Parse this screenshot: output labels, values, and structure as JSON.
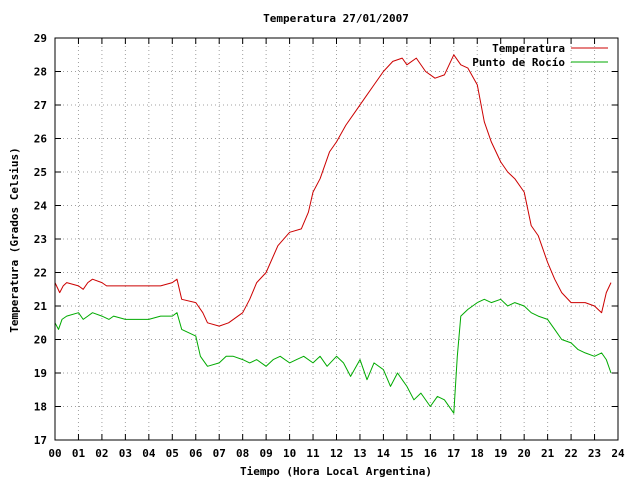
{
  "chart_data": {
    "type": "line",
    "title": "Temperatura 27/01/2007",
    "xlabel": "Tiempo (Hora Local Argentina)",
    "ylabel": "Temperatura (Grados Celsius)",
    "xlim": [
      0,
      24
    ],
    "ylim": [
      17,
      29
    ],
    "xticks": [
      "00",
      "01",
      "02",
      "03",
      "04",
      "05",
      "06",
      "07",
      "08",
      "09",
      "10",
      "11",
      "12",
      "13",
      "14",
      "15",
      "16",
      "17",
      "18",
      "19",
      "20",
      "21",
      "22",
      "23",
      "24"
    ],
    "yticks": [
      "17",
      "18",
      "19",
      "20",
      "21",
      "22",
      "23",
      "24",
      "25",
      "26",
      "27",
      "28",
      "29"
    ],
    "grid": true,
    "legend_position": "top-right",
    "series": [
      {
        "name": "Temperatura",
        "color": "#cc0000",
        "x": [
          0.0,
          0.2,
          0.35,
          0.5,
          1.0,
          1.2,
          1.4,
          1.6,
          2.0,
          2.2,
          2.5,
          3.0,
          3.5,
          4.0,
          4.5,
          5.0,
          5.2,
          5.4,
          6.0,
          6.3,
          6.5,
          7.0,
          7.4,
          8.0,
          8.3,
          8.6,
          9.0,
          9.5,
          10.0,
          10.5,
          10.8,
          11.0,
          11.3,
          11.7,
          12.0,
          12.4,
          12.8,
          13.2,
          13.6,
          14.0,
          14.4,
          14.8,
          15.0,
          15.4,
          15.8,
          16.2,
          16.6,
          17.0,
          17.3,
          17.6,
          18.0,
          18.3,
          18.6,
          19.0,
          19.3,
          19.6,
          20.0,
          20.3,
          20.6,
          21.0,
          21.3,
          21.6,
          22.0,
          22.3,
          22.6,
          23.0,
          23.3,
          23.5,
          23.7
        ],
        "y": [
          21.7,
          21.4,
          21.6,
          21.7,
          21.6,
          21.5,
          21.7,
          21.8,
          21.7,
          21.6,
          21.6,
          21.6,
          21.6,
          21.6,
          21.6,
          21.7,
          21.8,
          21.2,
          21.1,
          20.8,
          20.5,
          20.4,
          20.5,
          20.8,
          21.2,
          21.7,
          22.0,
          22.8,
          23.2,
          23.3,
          23.8,
          24.4,
          24.8,
          25.6,
          25.9,
          26.4,
          26.8,
          27.2,
          27.6,
          28.0,
          28.3,
          28.4,
          28.2,
          28.4,
          28.0,
          27.8,
          27.9,
          28.5,
          28.2,
          28.1,
          27.6,
          26.5,
          25.9,
          25.3,
          25.0,
          24.8,
          24.4,
          23.4,
          23.1,
          22.3,
          21.8,
          21.4,
          21.1,
          21.1,
          21.1,
          21.0,
          20.8,
          21.4,
          21.7
        ]
      },
      {
        "name": "Punto de Rocío",
        "color": "#00aa00",
        "x": [
          0.0,
          0.15,
          0.3,
          0.5,
          1.0,
          1.2,
          1.4,
          1.6,
          2.0,
          2.3,
          2.5,
          3.0,
          3.5,
          4.0,
          4.5,
          5.0,
          5.2,
          5.4,
          6.0,
          6.2,
          6.5,
          7.0,
          7.3,
          7.6,
          8.0,
          8.3,
          8.6,
          9.0,
          9.3,
          9.6,
          10.0,
          10.3,
          10.6,
          11.0,
          11.3,
          11.6,
          12.0,
          12.3,
          12.6,
          13.0,
          13.3,
          13.6,
          14.0,
          14.3,
          14.6,
          15.0,
          15.3,
          15.6,
          16.0,
          16.3,
          16.6,
          17.0,
          17.15,
          17.3,
          17.6,
          18.0,
          18.3,
          18.6,
          19.0,
          19.3,
          19.6,
          20.0,
          20.3,
          20.6,
          21.0,
          21.3,
          21.6,
          22.0,
          22.3,
          22.6,
          23.0,
          23.3,
          23.5,
          23.7
        ],
        "y": [
          20.5,
          20.3,
          20.6,
          20.7,
          20.8,
          20.6,
          20.7,
          20.8,
          20.7,
          20.6,
          20.7,
          20.6,
          20.6,
          20.6,
          20.7,
          20.7,
          20.8,
          20.3,
          20.1,
          19.5,
          19.2,
          19.3,
          19.5,
          19.5,
          19.4,
          19.3,
          19.4,
          19.2,
          19.4,
          19.5,
          19.3,
          19.4,
          19.5,
          19.3,
          19.5,
          19.2,
          19.5,
          19.3,
          18.9,
          19.4,
          18.8,
          19.3,
          19.1,
          18.6,
          19.0,
          18.6,
          18.2,
          18.4,
          18.0,
          18.3,
          18.2,
          17.8,
          19.5,
          20.7,
          20.9,
          21.1,
          21.2,
          21.1,
          21.2,
          21.0,
          21.1,
          21.0,
          20.8,
          20.7,
          20.6,
          20.3,
          20.0,
          19.9,
          19.7,
          19.6,
          19.5,
          19.6,
          19.4,
          19.0
        ]
      }
    ]
  }
}
